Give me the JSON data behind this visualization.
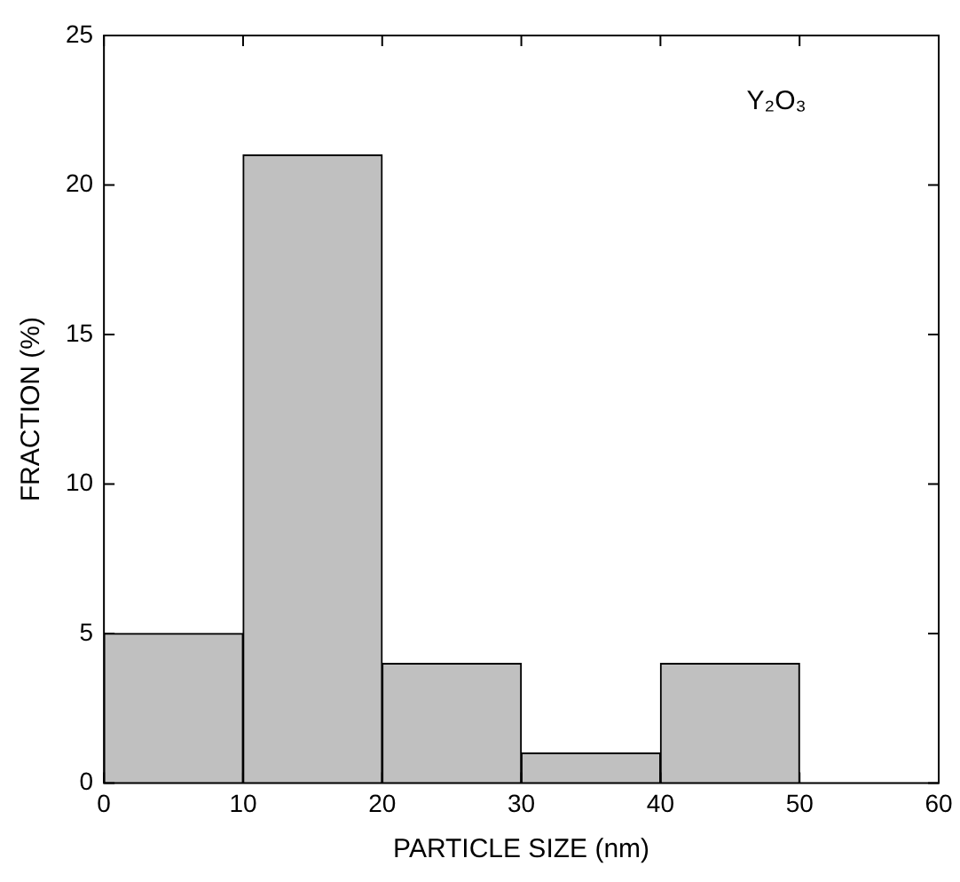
{
  "chart_data": {
    "type": "histogram",
    "xlabel": "PARTICLE SIZE (nm)",
    "ylabel": "FRACTION (%)",
    "bins": [
      0,
      10,
      20,
      30,
      40,
      50
    ],
    "values": [
      5,
      21,
      4,
      1,
      4
    ],
    "color": "#c0c0c0",
    "xlim": [
      0,
      60
    ],
    "xticks": [
      0,
      10,
      20,
      30,
      40,
      50,
      60
    ],
    "ylim": [
      0,
      25
    ],
    "yticks": [
      0,
      5,
      10,
      15,
      20,
      25
    ],
    "grid": false,
    "legend": false,
    "annotations": [
      "Y₂O₃"
    ]
  }
}
